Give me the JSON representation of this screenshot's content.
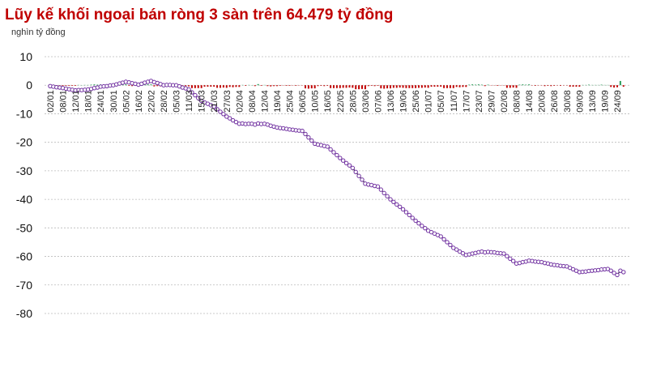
{
  "chart_data": {
    "type": "line_bar",
    "title": "Lũy kế khối ngoại bán ròng 3 sàn trên 64.479 tỷ đồng",
    "subtitle": "nghìn tỷ đồng",
    "categories": [
      "02/01",
      null,
      null,
      null,
      "08/01",
      null,
      null,
      null,
      "12/01",
      null,
      null,
      null,
      "18/01",
      null,
      null,
      null,
      "24/01",
      null,
      null,
      null,
      "30/01",
      null,
      null,
      null,
      "05/02",
      null,
      null,
      null,
      "16/02",
      null,
      null,
      null,
      "22/02",
      null,
      null,
      null,
      "28/02",
      null,
      null,
      null,
      "05/03",
      null,
      null,
      null,
      "11/03",
      null,
      null,
      null,
      "15/03",
      null,
      null,
      null,
      "21/03",
      null,
      null,
      null,
      "27/03",
      null,
      null,
      null,
      "02/04",
      null,
      null,
      null,
      "08/04",
      null,
      null,
      null,
      "12/04",
      null,
      null,
      null,
      "19/04",
      null,
      null,
      null,
      "25/04",
      null,
      null,
      null,
      "06/05",
      null,
      null,
      null,
      "10/05",
      null,
      null,
      null,
      "16/05",
      null,
      null,
      null,
      "22/05",
      null,
      null,
      null,
      "28/05",
      null,
      null,
      null,
      "03/06",
      null,
      null,
      null,
      "07/06",
      null,
      null,
      null,
      "13/06",
      null,
      null,
      null,
      "19/06",
      null,
      null,
      null,
      "25/06",
      null,
      null,
      null,
      "01/07",
      null,
      null,
      null,
      "05/07",
      null,
      null,
      null,
      "11/07",
      null,
      null,
      null,
      "17/07",
      null,
      null,
      null,
      "23/07",
      null,
      null,
      null,
      "29/07",
      null,
      null,
      null,
      "02/08",
      null,
      null,
      null,
      "08/08",
      null,
      null,
      null,
      "14/08",
      null,
      null,
      null,
      "20/08",
      null,
      null,
      null,
      "26/08",
      null,
      null,
      null,
      "30/08",
      null,
      null,
      null,
      "09/09",
      null,
      null,
      null,
      "13/09",
      null,
      null,
      null,
      "19/09",
      null,
      null,
      null,
      "24/09",
      null,
      null
    ],
    "series": [
      {
        "kind": "bar",
        "positive_color": "#2e9e5b",
        "negative_color": "#c00000",
        "values": [
          -0.3,
          -0.2,
          -0.2,
          -0.1,
          -0.2,
          -0.2,
          -0.2,
          -0.2,
          -0.2,
          0.1,
          0,
          0.1,
          0.1,
          0.2,
          0.3,
          0.2,
          0.3,
          0.1,
          0.1,
          0.2,
          0.1,
          0.3,
          0.3,
          0.3,
          0.3,
          -0.2,
          -0.3,
          -0.2,
          -0.3,
          0.3,
          0.4,
          0.3,
          0.3,
          -0.4,
          -0.3,
          -0.4,
          -0.4,
          0.1,
          0,
          -0.1,
          0,
          -0.4,
          -0.4,
          -0.3,
          -0.4,
          -1.0,
          -1.0,
          -1.0,
          -1.0,
          -0.5,
          -0.5,
          -0.5,
          -0.5,
          -0.9,
          -0.9,
          -0.8,
          -0.9,
          -0.6,
          -0.7,
          -0.6,
          -0.6,
          0.1,
          -0.2,
          0.1,
          0,
          -0.3,
          0.4,
          -0.2,
          0.1,
          -0.3,
          -0.4,
          -0.3,
          -0.3,
          -0.2,
          -0.1,
          -0.2,
          -0.2,
          -0.1,
          -0.2,
          -0.1,
          -0.1,
          -1.1,
          -1.2,
          -1.1,
          -1.1,
          -0.3,
          -0.2,
          -0.3,
          -0.2,
          -1.0,
          -1.0,
          -1.0,
          -1.0,
          -0.9,
          -0.9,
          -0.8,
          -0.9,
          -1.4,
          -1.4,
          -1.3,
          -1.4,
          -0.3,
          -0.2,
          -0.3,
          -0.2,
          -1.1,
          -1.2,
          -1.1,
          -1.1,
          -0.9,
          -0.9,
          -0.8,
          -0.9,
          -1.0,
          -1.0,
          -1.0,
          -1.0,
          -0.9,
          -0.9,
          -0.8,
          -0.9,
          -0.5,
          -0.5,
          -0.5,
          -0.5,
          -1.0,
          -1.0,
          -1.0,
          -1.0,
          -0.6,
          -0.7,
          -0.6,
          -0.6,
          0.2,
          0.3,
          0.2,
          0.3,
          0.2,
          -0.3,
          0.2,
          -0.1,
          -0.1,
          -0.2,
          -0.1,
          -0.1,
          -0.9,
          -0.9,
          -0.8,
          -0.9,
          0.2,
          0.3,
          0.2,
          0.3,
          -0.1,
          -0.2,
          -0.1,
          -0.1,
          -0.3,
          -0.2,
          -0.3,
          -0.2,
          -0.1,
          -0.2,
          -0.1,
          -0.1,
          -0.5,
          -0.5,
          -0.5,
          -0.5,
          0.1,
          0.1,
          0.2,
          0.1,
          0.1,
          0.1,
          0.2,
          0.1,
          0.1,
          -0.6,
          -0.8,
          -0.7,
          1.5,
          -0.5
        ]
      },
      {
        "kind": "line",
        "color": "#7030a0",
        "values": [
          -0.3,
          -0.5,
          -0.7,
          -0.8,
          -1.0,
          -1.2,
          -1.4,
          -1.6,
          -1.8,
          -1.7,
          -1.7,
          -1.6,
          -1.5,
          -1.3,
          -1.0,
          -0.8,
          -0.5,
          -0.4,
          -0.3,
          -0.1,
          0,
          0.3,
          0.6,
          0.9,
          1.2,
          1.0,
          0.7,
          0.5,
          0.2,
          0.5,
          0.9,
          1.2,
          1.5,
          1.1,
          0.8,
          0.4,
          0,
          0.1,
          0.1,
          0,
          0,
          -0.4,
          -0.8,
          -1.1,
          -1.5,
          -2.5,
          -3.5,
          -4.5,
          -5.5,
          -6,
          -6.5,
          -7,
          -7.5,
          -8.4,
          -9.3,
          -10.1,
          -11,
          -11.6,
          -12.3,
          -12.9,
          -13.5,
          -13.4,
          -13.6,
          -13.5,
          -13.5,
          -13.8,
          -13.4,
          -13.6,
          -13.5,
          -13.8,
          -14.2,
          -14.5,
          -14.8,
          -15,
          -15.1,
          -15.3,
          -15.5,
          -15.6,
          -15.8,
          -15.9,
          -16,
          -17.1,
          -18.3,
          -19.4,
          -20.5,
          -20.8,
          -21,
          -21.3,
          -21.5,
          -22.5,
          -23.5,
          -24.5,
          -25.5,
          -26.4,
          -27.3,
          -28.1,
          -29,
          -30.4,
          -31.8,
          -33.1,
          -34.5,
          -34.8,
          -35,
          -35.3,
          -35.5,
          -36.6,
          -37.8,
          -38.9,
          -40,
          -40.9,
          -41.8,
          -42.6,
          -43.5,
          -44.5,
          -45.5,
          -46.5,
          -47.5,
          -48.4,
          -49.3,
          -50.1,
          -51,
          -51.5,
          -52,
          -52.5,
          -53,
          -54,
          -55,
          -56,
          -57,
          -57.6,
          -58.3,
          -58.9,
          -59.5,
          -59.3,
          -59,
          -58.8,
          -58.5,
          -58.3,
          -58.6,
          -58.4,
          -58.5,
          -58.6,
          -58.8,
          -58.9,
          -59,
          -59.9,
          -60.8,
          -61.6,
          -62.5,
          -62.3,
          -62,
          -61.8,
          -61.5,
          -61.6,
          -61.8,
          -61.9,
          -62,
          -62.3,
          -62.5,
          -62.8,
          -63,
          -63.1,
          -63.3,
          -63.4,
          -63.5,
          -64,
          -64.5,
          -65,
          -65.5,
          -65.4,
          -65.3,
          -65.1,
          -65,
          -64.9,
          -64.8,
          -64.6,
          -64.5,
          -64.4,
          -65,
          -65.8,
          -66.5,
          -65,
          -65.5
        ]
      }
    ],
    "ylim": [
      -80,
      10
    ],
    "yticks": [
      10,
      0,
      -10,
      -20,
      -30,
      -40,
      -50,
      -60,
      -70,
      -80
    ],
    "grid": true
  }
}
